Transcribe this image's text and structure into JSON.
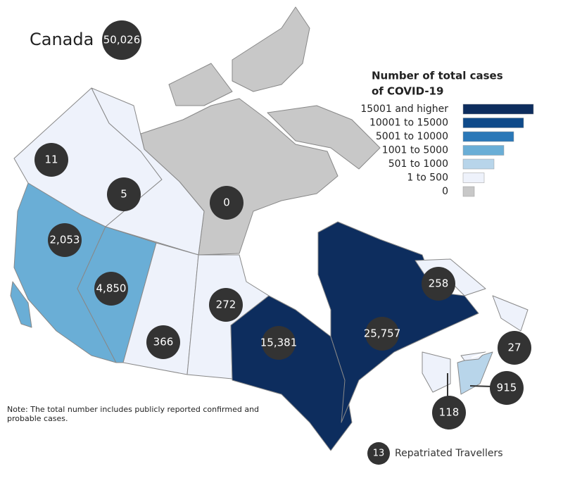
{
  "header": {
    "title": "Canada",
    "total": "50,026"
  },
  "legend": {
    "title": [
      "Number of total cases",
      "of COVID-19"
    ],
    "items": [
      {
        "label": "15001 and higher",
        "color": "#0d2d5e"
      },
      {
        "label": "10001 to 15000",
        "color": "#0f4a8a"
      },
      {
        "label": "5001 to 10000",
        "color": "#2a78b8"
      },
      {
        "label": "1001 to 5000",
        "color": "#6aaed6"
      },
      {
        "label": "501 to 1000",
        "color": "#b8d5ea"
      },
      {
        "label": "1 to 500",
        "color": "#eef2fb"
      },
      {
        "label": "0",
        "color": "#c8c8c8"
      }
    ]
  },
  "regions": [
    {
      "value": "11",
      "color": "#eef2fb"
    },
    {
      "value": "5",
      "color": "#eef2fb"
    },
    {
      "value": "0",
      "color": "#c8c8c8"
    },
    {
      "value": "2,053",
      "color": "#6aaed6"
    },
    {
      "value": "4,850",
      "color": "#6aaed6"
    },
    {
      "value": "366",
      "color": "#eef2fb"
    },
    {
      "value": "272",
      "color": "#eef2fb"
    },
    {
      "value": "15,381",
      "color": "#0d2d5e"
    },
    {
      "value": "25,757",
      "color": "#0d2d5e"
    },
    {
      "value": "258",
      "color": "#eef2fb"
    },
    {
      "value": "27",
      "color": "#eef2fb"
    },
    {
      "value": "915",
      "color": "#b8d5ea"
    },
    {
      "value": "118",
      "color": "#eef2fb"
    }
  ],
  "note": "Note: The total number includes publicly reported confirmed and probable cases.",
  "repatriated": {
    "count": "13",
    "label": "Repatriated Travellers"
  }
}
